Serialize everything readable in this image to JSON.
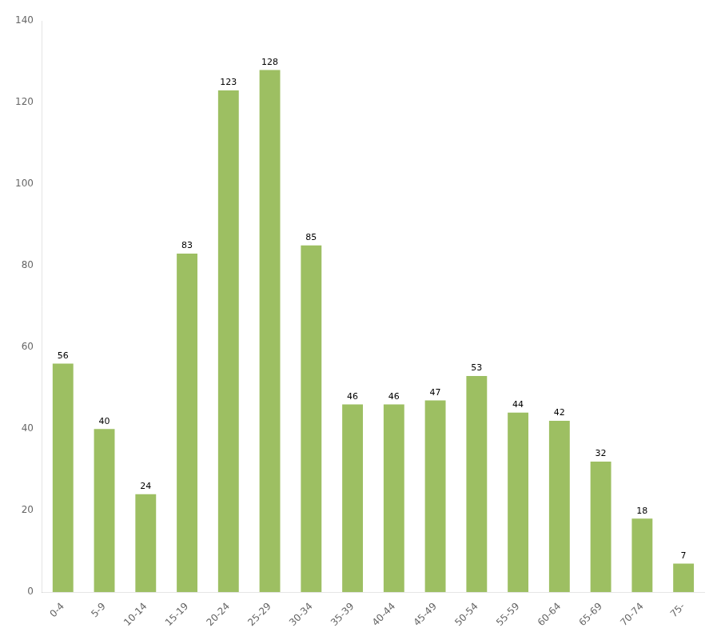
{
  "chart_data": {
    "type": "bar",
    "categories": [
      "0-4",
      "5-9",
      "10-14",
      "15-19",
      "20-24",
      "25-29",
      "30-34",
      "35-39",
      "40-44",
      "45-49",
      "50-54",
      "55-59",
      "60-64",
      "65-69",
      "70-74",
      "75-"
    ],
    "values": [
      56,
      40,
      24,
      83,
      123,
      128,
      85,
      46,
      46,
      47,
      53,
      44,
      42,
      32,
      18,
      7
    ],
    "color": "#9dbf62",
    "ylim": [
      0,
      140
    ],
    "yticks": [
      0,
      20,
      40,
      60,
      80,
      100,
      120,
      140
    ],
    "grid": false,
    "data_labels": true
  }
}
